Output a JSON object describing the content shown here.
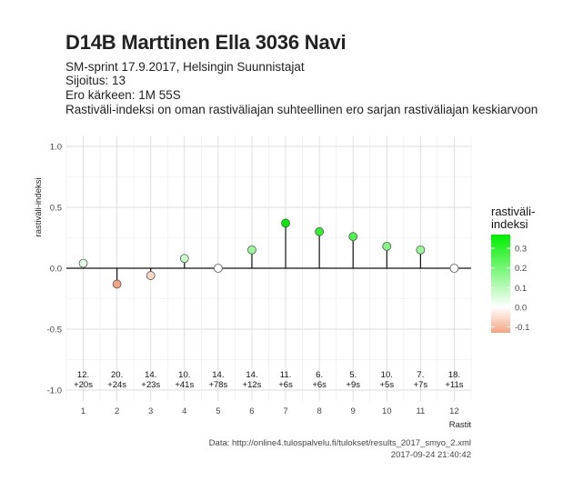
{
  "header": {
    "title": "D14B Marttinen Ella 3036 Navi",
    "line1": "SM-sprint 17.9.2017, Helsingin Suunnistajat",
    "line2": "Sijoitus: 13",
    "line3": "Ero kärkeen: 1M 55S",
    "line4": "Rastiväli-indeksi on oman rastiväliajan suhteellinen ero sarjan rastiväliajan keskiarvoon"
  },
  "caption": {
    "source": "Data: http://online4.tulospalvelu.fi/tulokset/results_2017_smyo_2.xml",
    "timestamp": "2017-09-24 21:40:42"
  },
  "chart_data": {
    "type": "scatter",
    "style": "lollipop",
    "xlabel": "Rastit",
    "ylabel": "rastiväli-indeksi",
    "ylim": [
      -1.0,
      1.0
    ],
    "yticks": [
      "1.0",
      "0.5",
      "0.0",
      "-0.5",
      "-1.0"
    ],
    "xticks": [
      "1",
      "2",
      "3",
      "4",
      "5",
      "6",
      "7",
      "8",
      "9",
      "10",
      "11",
      "12"
    ],
    "x": [
      1,
      2,
      3,
      4,
      5,
      6,
      7,
      8,
      9,
      10,
      11,
      12
    ],
    "values": [
      0.04,
      -0.13,
      -0.06,
      0.08,
      0.0,
      0.15,
      0.37,
      0.3,
      0.26,
      0.18,
      0.15,
      0.0
    ],
    "rank_labels": [
      "12.",
      "20.",
      "14.",
      "10.",
      "14.",
      "14.",
      "11.",
      "6.",
      "5.",
      "10.",
      "7.",
      "18."
    ],
    "diff_labels": [
      "+20s",
      "+24s",
      "+23s",
      "+41s",
      "+78s",
      "+12s",
      "+6s",
      "+6s",
      "+9s",
      "+5s",
      "+7s",
      "+11s"
    ],
    "grid": true,
    "legend": {
      "title_line1": "rastiväli-",
      "title_line2": "indeksi",
      "ticks": [
        "0.3",
        "0.2",
        "0.1",
        "0.0",
        "-0.1"
      ],
      "tick_values": [
        0.3,
        0.2,
        0.1,
        0.0,
        -0.1
      ],
      "range": [
        -0.13,
        0.37
      ],
      "placement": "right"
    },
    "colors": {
      "positive": "#00ee00",
      "zero": "#ffffff",
      "negative": "#f4a582"
    }
  }
}
